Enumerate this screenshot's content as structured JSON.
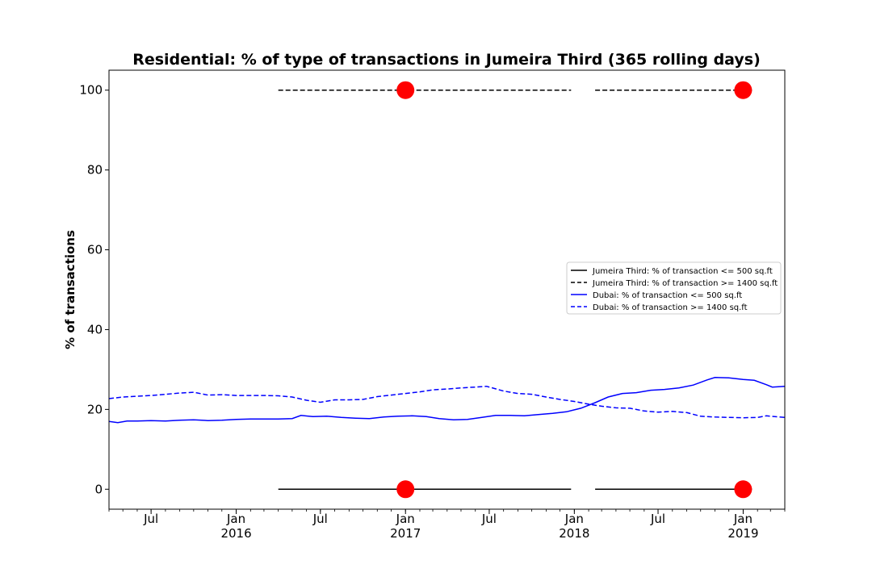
{
  "chart_data": {
    "type": "line",
    "title": "Residential: % of type of transactions in Jumeira Third (365 rolling days)",
    "xlabel": "",
    "ylabel": "% of transactions",
    "xlim": [
      "2015-04-01",
      "2019-04-01"
    ],
    "ylim": [
      -5,
      105
    ],
    "y_ticks": [
      0,
      20,
      40,
      60,
      80,
      100
    ],
    "x_ticks": [
      {
        "date": "2015-07-01",
        "label": "Jul",
        "sublabel": ""
      },
      {
        "date": "2016-01-01",
        "label": "Jan",
        "sublabel": "2016"
      },
      {
        "date": "2016-07-01",
        "label": "Jul",
        "sublabel": ""
      },
      {
        "date": "2017-01-01",
        "label": "Jan",
        "sublabel": "2017"
      },
      {
        "date": "2017-07-01",
        "label": "Jul",
        "sublabel": ""
      },
      {
        "date": "2018-01-01",
        "label": "Jan",
        "sublabel": "2018"
      },
      {
        "date": "2018-07-01",
        "label": "Jul",
        "sublabel": ""
      },
      {
        "date": "2019-01-01",
        "label": "Jan",
        "sublabel": "2019"
      }
    ],
    "legend_position": "center-right",
    "grid": false,
    "series": [
      {
        "name": "Jumeira Third: % of transaction <= 500 sq.ft",
        "color": "#000000",
        "dash": "solid",
        "segments": [
          [
            [
              "2016-04-01",
              0
            ],
            [
              "2017-12-25",
              0
            ]
          ],
          [
            [
              "2018-02-15",
              0
            ],
            [
              "2019-01-20",
              0
            ]
          ]
        ]
      },
      {
        "name": "Jumeira Third: % of transaction >= 1400 sq.ft",
        "color": "#000000",
        "dash": "dashed",
        "segments": [
          [
            [
              "2016-04-01",
              100
            ],
            [
              "2017-12-25",
              100
            ]
          ],
          [
            [
              "2018-02-15",
              100
            ],
            [
              "2019-01-20",
              100
            ]
          ]
        ]
      },
      {
        "name": "Dubai: % of transaction <= 500 sq.ft",
        "color": "#0000ff",
        "dash": "solid",
        "points": [
          [
            "2015-04-01",
            17.0
          ],
          [
            "2015-04-20",
            16.7
          ],
          [
            "2015-05-10",
            17.1
          ],
          [
            "2015-06-01",
            17.1
          ],
          [
            "2015-07-01",
            17.2
          ],
          [
            "2015-08-01",
            17.1
          ],
          [
            "2015-09-01",
            17.3
          ],
          [
            "2015-10-01",
            17.4
          ],
          [
            "2015-11-01",
            17.2
          ],
          [
            "2015-12-01",
            17.3
          ],
          [
            "2016-01-01",
            17.5
          ],
          [
            "2016-02-01",
            17.6
          ],
          [
            "2016-03-01",
            17.6
          ],
          [
            "2016-04-01",
            17.6
          ],
          [
            "2016-05-01",
            17.7
          ],
          [
            "2016-05-20",
            18.5
          ],
          [
            "2016-06-15",
            18.2
          ],
          [
            "2016-07-15",
            18.3
          ],
          [
            "2016-08-15",
            18.0
          ],
          [
            "2016-09-15",
            17.8
          ],
          [
            "2016-10-15",
            17.7
          ],
          [
            "2016-11-15",
            18.1
          ],
          [
            "2016-12-15",
            18.3
          ],
          [
            "2017-01-15",
            18.4
          ],
          [
            "2017-02-15",
            18.2
          ],
          [
            "2017-03-15",
            17.7
          ],
          [
            "2017-04-15",
            17.4
          ],
          [
            "2017-05-15",
            17.5
          ],
          [
            "2017-06-15",
            18.0
          ],
          [
            "2017-07-15",
            18.5
          ],
          [
            "2017-08-15",
            18.5
          ],
          [
            "2017-09-15",
            18.4
          ],
          [
            "2017-10-15",
            18.7
          ],
          [
            "2017-11-15",
            19.0
          ],
          [
            "2017-12-15",
            19.4
          ],
          [
            "2018-01-15",
            20.3
          ],
          [
            "2018-02-15",
            21.7
          ],
          [
            "2018-03-15",
            23.1
          ],
          [
            "2018-04-15",
            24.0
          ],
          [
            "2018-05-15",
            24.2
          ],
          [
            "2018-06-15",
            24.8
          ],
          [
            "2018-07-15",
            25.0
          ],
          [
            "2018-08-15",
            25.4
          ],
          [
            "2018-09-15",
            26.1
          ],
          [
            "2018-10-15",
            27.4
          ],
          [
            "2018-11-01",
            28.0
          ],
          [
            "2018-12-01",
            27.9
          ],
          [
            "2019-01-01",
            27.5
          ],
          [
            "2019-01-25",
            27.3
          ],
          [
            "2019-02-20",
            26.2
          ],
          [
            "2019-03-05",
            25.6
          ],
          [
            "2019-04-01",
            25.8
          ]
        ]
      },
      {
        "name": "Dubai: % of transaction >= 1400 sq.ft",
        "color": "#0000ff",
        "dash": "dashed",
        "points": [
          [
            "2015-04-01",
            22.7
          ],
          [
            "2015-05-01",
            23.1
          ],
          [
            "2015-06-01",
            23.3
          ],
          [
            "2015-07-01",
            23.5
          ],
          [
            "2015-08-01",
            23.8
          ],
          [
            "2015-09-01",
            24.1
          ],
          [
            "2015-10-01",
            24.3
          ],
          [
            "2015-11-01",
            23.6
          ],
          [
            "2015-12-01",
            23.7
          ],
          [
            "2016-01-01",
            23.5
          ],
          [
            "2016-02-01",
            23.5
          ],
          [
            "2016-03-01",
            23.5
          ],
          [
            "2016-04-01",
            23.4
          ],
          [
            "2016-05-01",
            23.1
          ],
          [
            "2016-06-01",
            22.3
          ],
          [
            "2016-07-01",
            21.8
          ],
          [
            "2016-08-01",
            22.4
          ],
          [
            "2016-09-01",
            22.4
          ],
          [
            "2016-10-01",
            22.5
          ],
          [
            "2016-11-01",
            23.2
          ],
          [
            "2016-12-01",
            23.6
          ],
          [
            "2017-01-01",
            24.0
          ],
          [
            "2017-02-01",
            24.4
          ],
          [
            "2017-03-01",
            24.9
          ],
          [
            "2017-04-01",
            25.1
          ],
          [
            "2017-05-01",
            25.4
          ],
          [
            "2017-06-01",
            25.6
          ],
          [
            "2017-06-25",
            25.8
          ],
          [
            "2017-08-01",
            24.6
          ],
          [
            "2017-09-01",
            24.0
          ],
          [
            "2017-10-01",
            23.8
          ],
          [
            "2017-11-01",
            23.1
          ],
          [
            "2017-12-01",
            22.5
          ],
          [
            "2018-01-01",
            22.0
          ],
          [
            "2018-02-01",
            21.3
          ],
          [
            "2018-03-01",
            20.8
          ],
          [
            "2018-04-01",
            20.4
          ],
          [
            "2018-05-01",
            20.3
          ],
          [
            "2018-06-01",
            19.6
          ],
          [
            "2018-07-01",
            19.3
          ],
          [
            "2018-08-01",
            19.5
          ],
          [
            "2018-09-01",
            19.2
          ],
          [
            "2018-10-01",
            18.3
          ],
          [
            "2018-11-01",
            18.1
          ],
          [
            "2018-12-01",
            18.0
          ],
          [
            "2019-01-01",
            17.9
          ],
          [
            "2019-02-01",
            18.0
          ],
          [
            "2019-02-20",
            18.4
          ],
          [
            "2019-03-10",
            18.2
          ],
          [
            "2019-04-01",
            18.0
          ]
        ]
      }
    ],
    "markers": [
      {
        "date": "2017-01-01",
        "value": 100,
        "color": "#ff0000"
      },
      {
        "date": "2019-01-01",
        "value": 100,
        "color": "#ff0000"
      },
      {
        "date": "2017-01-01",
        "value": 0,
        "color": "#ff0000"
      },
      {
        "date": "2019-01-01",
        "value": 0,
        "color": "#ff0000"
      }
    ]
  }
}
